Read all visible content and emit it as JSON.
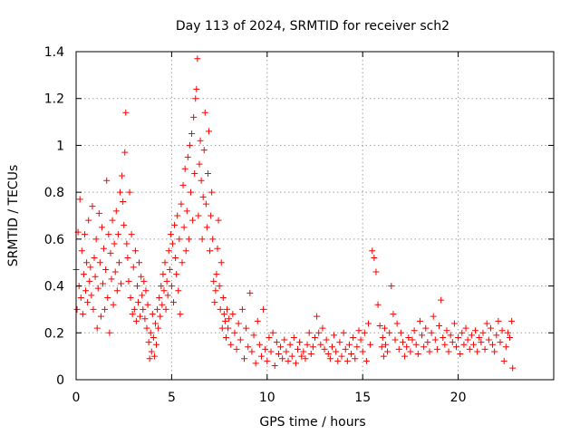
{
  "chart_data": {
    "type": "scatter",
    "title": "Day 113 of 2024, SRMTID for receiver sch2",
    "xlabel": "GPS time / hours",
    "ylabel": "SRMTID / TECUs",
    "xlim": [
      0,
      25
    ],
    "ylim": [
      0,
      1.4
    ],
    "xticks": [
      0,
      5,
      10,
      15,
      20
    ],
    "xtick_labels": [
      "0",
      "5",
      "10",
      "15",
      "20"
    ],
    "yticks": [
      0,
      0.2,
      0.4,
      0.6,
      0.8,
      1,
      1.2,
      1.4
    ],
    "ytick_labels": [
      "0",
      "0.2",
      "0.4",
      "0.6",
      "0.8",
      "1",
      "1.2",
      "1.4"
    ],
    "grid": true,
    "marker": "+",
    "color": "#ff0000",
    "series": [
      {
        "name": "SRMTID",
        "x": [
          0.0,
          0.05,
          0.1,
          0.15,
          0.2,
          0.25,
          0.3,
          0.35,
          0.4,
          0.45,
          0.5,
          0.55,
          0.6,
          0.65,
          0.7,
          0.75,
          0.8,
          0.85,
          0.9,
          0.95,
          1.0,
          1.05,
          1.1,
          1.15,
          1.2,
          1.25,
          1.3,
          1.35,
          1.4,
          1.45,
          1.5,
          1.55,
          1.6,
          1.65,
          1.7,
          1.75,
          1.8,
          1.85,
          1.9,
          1.95,
          2.0,
          2.05,
          2.1,
          2.15,
          2.2,
          2.25,
          2.3,
          2.35,
          2.4,
          2.45,
          2.5,
          2.55,
          2.6,
          2.65,
          2.7,
          2.75,
          2.8,
          2.85,
          2.9,
          2.95,
          3.0,
          3.05,
          3.1,
          3.15,
          3.2,
          3.25,
          3.3,
          3.35,
          3.4,
          3.45,
          3.5,
          3.55,
          3.6,
          3.65,
          3.7,
          3.75,
          3.8,
          3.85,
          3.9,
          3.95,
          4.0,
          4.05,
          4.1,
          4.15,
          4.2,
          4.25,
          4.3,
          4.35,
          4.4,
          4.45,
          4.5,
          4.55,
          4.6,
          4.65,
          4.7,
          4.75,
          4.8,
          4.85,
          4.9,
          4.95,
          5.0,
          5.05,
          5.1,
          5.15,
          5.2,
          5.25,
          5.3,
          5.35,
          5.4,
          5.45,
          5.5,
          5.55,
          5.6,
          5.65,
          5.7,
          5.75,
          5.8,
          5.85,
          5.9,
          5.95,
          6.0,
          6.05,
          6.1,
          6.15,
          6.2,
          6.25,
          6.3,
          6.35,
          6.4,
          6.45,
          6.5,
          6.55,
          6.6,
          6.65,
          6.7,
          6.75,
          6.8,
          6.85,
          6.9,
          6.95,
          7.0,
          7.05,
          7.1,
          7.15,
          7.2,
          7.25,
          7.3,
          7.35,
          7.4,
          7.45,
          7.5,
          7.55,
          7.6,
          7.65,
          7.7,
          7.75,
          7.8,
          7.85,
          7.9,
          7.95,
          8.0,
          8.1,
          8.2,
          8.3,
          8.4,
          8.5,
          8.6,
          8.7,
          8.8,
          8.9,
          9.0,
          9.1,
          9.2,
          9.3,
          9.4,
          9.5,
          9.6,
          9.7,
          9.8,
          9.9,
          10.0,
          10.1,
          10.2,
          10.3,
          10.4,
          10.5,
          10.6,
          10.7,
          10.8,
          10.9,
          11.0,
          11.1,
          11.2,
          11.3,
          11.4,
          11.5,
          11.6,
          11.7,
          11.8,
          11.9,
          12.0,
          12.1,
          12.2,
          12.3,
          12.4,
          12.5,
          12.6,
          12.7,
          12.8,
          12.9,
          13.0,
          13.1,
          13.2,
          13.3,
          13.4,
          13.5,
          13.6,
          13.7,
          13.8,
          13.9,
          14.0,
          14.1,
          14.2,
          14.3,
          14.4,
          14.5,
          14.6,
          14.7,
          14.8,
          14.9,
          15.0,
          15.1,
          15.2,
          15.3,
          15.4,
          15.5,
          15.6,
          15.7,
          15.8,
          15.9,
          16.0,
          16.05,
          16.1,
          16.15,
          16.2,
          16.3,
          16.4,
          16.5,
          16.6,
          16.7,
          16.8,
          16.9,
          17.0,
          17.1,
          17.2,
          17.3,
          17.4,
          17.5,
          17.6,
          17.7,
          17.8,
          17.9,
          18.0,
          18.1,
          18.2,
          18.3,
          18.4,
          18.5,
          18.6,
          18.7,
          18.8,
          18.9,
          19.0,
          19.1,
          19.2,
          19.3,
          19.4,
          19.5,
          19.6,
          19.7,
          19.8,
          19.9,
          20.0,
          20.1,
          20.2,
          20.3,
          20.4,
          20.5,
          20.6,
          20.7,
          20.8,
          20.9,
          21.0,
          21.1,
          21.2,
          21.3,
          21.4,
          21.5,
          21.6,
          21.7,
          21.8,
          21.9,
          22.0,
          22.1,
          22.2,
          22.3,
          22.4,
          22.5,
          22.6,
          22.7,
          22.8,
          22.85
        ],
        "y": [
          0.47,
          0.3,
          0.63,
          0.4,
          0.77,
          0.35,
          0.55,
          0.28,
          0.45,
          0.62,
          0.38,
          0.5,
          0.33,
          0.68,
          0.42,
          0.48,
          0.36,
          0.74,
          0.3,
          0.52,
          0.44,
          0.6,
          0.22,
          0.39,
          0.71,
          0.5,
          0.27,
          0.65,
          0.41,
          0.56,
          0.3,
          0.47,
          0.85,
          0.35,
          0.62,
          0.2,
          0.54,
          0.43,
          0.68,
          0.32,
          0.58,
          0.46,
          0.72,
          0.38,
          0.62,
          0.5,
          0.8,
          0.41,
          0.87,
          0.76,
          0.66,
          0.97,
          1.14,
          0.58,
          0.52,
          0.42,
          0.8,
          0.35,
          0.62,
          0.28,
          0.48,
          0.3,
          0.55,
          0.25,
          0.4,
          0.33,
          0.5,
          0.27,
          0.44,
          0.36,
          0.3,
          0.42,
          0.26,
          0.38,
          0.22,
          0.32,
          0.16,
          0.09,
          0.2,
          0.12,
          0.28,
          0.18,
          0.1,
          0.24,
          0.15,
          0.3,
          0.22,
          0.35,
          0.27,
          0.4,
          0.32,
          0.45,
          0.38,
          0.5,
          0.3,
          0.42,
          0.36,
          0.55,
          0.47,
          0.62,
          0.4,
          0.58,
          0.33,
          0.66,
          0.52,
          0.45,
          0.7,
          0.38,
          0.6,
          0.28,
          0.75,
          0.5,
          0.83,
          0.65,
          0.9,
          0.55,
          0.72,
          0.95,
          0.6,
          1.0,
          0.8,
          1.05,
          0.68,
          1.12,
          0.88,
          1.2,
          1.24,
          1.37,
          0.7,
          0.92,
          1.02,
          0.85,
          0.6,
          0.78,
          0.98,
          1.14,
          0.75,
          0.65,
          0.88,
          1.06,
          0.55,
          0.7,
          0.8,
          0.6,
          0.42,
          0.33,
          0.38,
          0.45,
          0.56,
          0.68,
          0.4,
          0.3,
          0.5,
          0.22,
          0.35,
          0.28,
          0.25,
          0.18,
          0.3,
          0.22,
          0.26,
          0.15,
          0.28,
          0.2,
          0.13,
          0.24,
          0.17,
          0.3,
          0.09,
          0.22,
          0.14,
          0.37,
          0.12,
          0.19,
          0.07,
          0.25,
          0.15,
          0.1,
          0.3,
          0.13,
          0.08,
          0.18,
          0.12,
          0.2,
          0.06,
          0.16,
          0.11,
          0.14,
          0.09,
          0.17,
          0.12,
          0.08,
          0.15,
          0.1,
          0.18,
          0.07,
          0.13,
          0.16,
          0.1,
          0.12,
          0.09,
          0.15,
          0.2,
          0.11,
          0.14,
          0.18,
          0.27,
          0.2,
          0.15,
          0.22,
          0.13,
          0.17,
          0.11,
          0.09,
          0.14,
          0.19,
          0.12,
          0.08,
          0.16,
          0.1,
          0.2,
          0.13,
          0.08,
          0.15,
          0.11,
          0.18,
          0.09,
          0.14,
          0.21,
          0.17,
          0.12,
          0.2,
          0.08,
          0.24,
          0.15,
          0.55,
          0.52,
          0.46,
          0.32,
          0.23,
          0.14,
          0.18,
          0.1,
          0.22,
          0.15,
          0.12,
          0.2,
          0.4,
          0.28,
          0.17,
          0.24,
          0.13,
          0.2,
          0.16,
          0.1,
          0.14,
          0.18,
          0.12,
          0.17,
          0.21,
          0.15,
          0.11,
          0.25,
          0.19,
          0.14,
          0.22,
          0.16,
          0.12,
          0.2,
          0.27,
          0.17,
          0.13,
          0.23,
          0.34,
          0.18,
          0.15,
          0.21,
          0.12,
          0.19,
          0.16,
          0.24,
          0.14,
          0.18,
          0.11,
          0.2,
          0.15,
          0.22,
          0.17,
          0.13,
          0.19,
          0.15,
          0.21,
          0.12,
          0.18,
          0.16,
          0.2,
          0.13,
          0.24,
          0.17,
          0.22,
          0.15,
          0.12,
          0.19,
          0.25,
          0.16,
          0.21,
          0.08,
          0.14,
          0.2,
          0.18,
          0.25,
          0.05
        ]
      }
    ]
  }
}
